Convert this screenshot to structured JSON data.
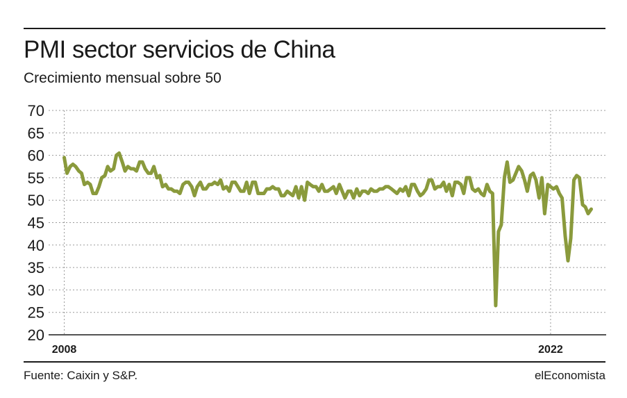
{
  "header": {
    "title": "PMI sector servicios de China",
    "subtitle": "Crecimiento mensual sobre 50"
  },
  "footer": {
    "source": "Fuente: Caixin y S&P.",
    "brand": "elEconomista"
  },
  "colors": {
    "line": "#8a9a3c",
    "grid": "#9a9a9a",
    "text": "#1a1a1a"
  },
  "chart_data": {
    "type": "line",
    "title": "PMI sector servicios de China",
    "subtitle": "Crecimiento mensual sobre 50",
    "xlabel": "",
    "ylabel": "",
    "ylim": [
      20,
      70
    ],
    "xlim": [
      2008,
      2023.25
    ],
    "yticks": [
      "70",
      "65",
      "60",
      "55",
      "50",
      "45",
      "40",
      "35",
      "30",
      "25",
      "20"
    ],
    "xticks": [
      {
        "label": "2008",
        "value": 2008
      },
      {
        "label": "2022",
        "value": 2022
      }
    ],
    "grid": "horizontal and vertical dotted",
    "legend": "none",
    "series": [
      {
        "values": [
          [
            2008.0,
            59.5
          ],
          [
            2008.08,
            56.0
          ],
          [
            2008.17,
            57.5
          ],
          [
            2008.25,
            58.0
          ],
          [
            2008.33,
            57.5
          ],
          [
            2008.42,
            56.5
          ],
          [
            2008.5,
            56.0
          ],
          [
            2008.58,
            53.5
          ],
          [
            2008.67,
            54.0
          ],
          [
            2008.75,
            53.5
          ],
          [
            2008.83,
            51.5
          ],
          [
            2008.92,
            51.5
          ],
          [
            2009.0,
            53.0
          ],
          [
            2009.08,
            55.0
          ],
          [
            2009.17,
            55.5
          ],
          [
            2009.25,
            57.5
          ],
          [
            2009.33,
            56.5
          ],
          [
            2009.42,
            57.0
          ],
          [
            2009.5,
            60.0
          ],
          [
            2009.58,
            60.5
          ],
          [
            2009.67,
            58.5
          ],
          [
            2009.75,
            56.5
          ],
          [
            2009.83,
            57.5
          ],
          [
            2009.92,
            57.0
          ],
          [
            2010.0,
            57.0
          ],
          [
            2010.08,
            56.5
          ],
          [
            2010.17,
            58.5
          ],
          [
            2010.25,
            58.5
          ],
          [
            2010.33,
            57.0
          ],
          [
            2010.42,
            56.0
          ],
          [
            2010.5,
            56.0
          ],
          [
            2010.58,
            57.5
          ],
          [
            2010.67,
            55.0
          ],
          [
            2010.75,
            55.5
          ],
          [
            2010.83,
            53.0
          ],
          [
            2010.92,
            53.5
          ],
          [
            2011.0,
            52.5
          ],
          [
            2011.08,
            52.5
          ],
          [
            2011.17,
            52.0
          ],
          [
            2011.25,
            52.0
          ],
          [
            2011.33,
            51.5
          ],
          [
            2011.42,
            53.5
          ],
          [
            2011.5,
            54.0
          ],
          [
            2011.58,
            54.0
          ],
          [
            2011.67,
            53.0
          ],
          [
            2011.75,
            51.0
          ],
          [
            2011.83,
            53.0
          ],
          [
            2011.92,
            54.0
          ],
          [
            2012.0,
            52.5
          ],
          [
            2012.08,
            52.5
          ],
          [
            2012.17,
            53.5
          ],
          [
            2012.25,
            53.5
          ],
          [
            2012.33,
            54.0
          ],
          [
            2012.42,
            53.5
          ],
          [
            2012.5,
            54.5
          ],
          [
            2012.58,
            52.5
          ],
          [
            2012.67,
            53.0
          ],
          [
            2012.75,
            52.0
          ],
          [
            2012.83,
            54.0
          ],
          [
            2012.92,
            54.0
          ],
          [
            2013.0,
            53.0
          ],
          [
            2013.08,
            52.0
          ],
          [
            2013.17,
            52.0
          ],
          [
            2013.25,
            54.0
          ],
          [
            2013.33,
            51.5
          ],
          [
            2013.42,
            54.0
          ],
          [
            2013.5,
            54.0
          ],
          [
            2013.58,
            51.5
          ],
          [
            2013.67,
            51.5
          ],
          [
            2013.75,
            51.5
          ],
          [
            2013.83,
            52.5
          ],
          [
            2013.92,
            52.5
          ],
          [
            2014.0,
            53.0
          ],
          [
            2014.08,
            52.5
          ],
          [
            2014.17,
            52.5
          ],
          [
            2014.25,
            51.0
          ],
          [
            2014.33,
            51.0
          ],
          [
            2014.42,
            52.0
          ],
          [
            2014.5,
            51.5
          ],
          [
            2014.58,
            51.0
          ],
          [
            2014.67,
            53.0
          ],
          [
            2014.75,
            50.5
          ],
          [
            2014.83,
            53.0
          ],
          [
            2014.92,
            50.0
          ],
          [
            2015.0,
            54.0
          ],
          [
            2015.08,
            53.5
          ],
          [
            2015.17,
            53.0
          ],
          [
            2015.25,
            53.0
          ],
          [
            2015.33,
            52.0
          ],
          [
            2015.42,
            53.5
          ],
          [
            2015.5,
            52.0
          ],
          [
            2015.58,
            52.0
          ],
          [
            2015.67,
            52.5
          ],
          [
            2015.75,
            53.0
          ],
          [
            2015.83,
            51.5
          ],
          [
            2015.92,
            53.5
          ],
          [
            2016.0,
            52.0
          ],
          [
            2016.08,
            50.5
          ],
          [
            2016.17,
            52.0
          ],
          [
            2016.25,
            52.0
          ],
          [
            2016.33,
            50.5
          ],
          [
            2016.42,
            52.5
          ],
          [
            2016.5,
            51.0
          ],
          [
            2016.58,
            52.0
          ],
          [
            2016.67,
            52.0
          ],
          [
            2016.75,
            51.5
          ],
          [
            2016.83,
            52.5
          ],
          [
            2016.92,
            52.0
          ],
          [
            2017.0,
            52.0
          ],
          [
            2017.08,
            52.5
          ],
          [
            2017.17,
            52.5
          ],
          [
            2017.25,
            53.0
          ],
          [
            2017.33,
            53.0
          ],
          [
            2017.42,
            52.5
          ],
          [
            2017.5,
            52.0
          ],
          [
            2017.58,
            51.5
          ],
          [
            2017.67,
            52.5
          ],
          [
            2017.75,
            52.0
          ],
          [
            2017.83,
            53.0
          ],
          [
            2017.92,
            51.0
          ],
          [
            2018.0,
            53.5
          ],
          [
            2018.08,
            53.5
          ],
          [
            2018.17,
            52.0
          ],
          [
            2018.25,
            51.0
          ],
          [
            2018.33,
            51.5
          ],
          [
            2018.42,
            52.5
          ],
          [
            2018.5,
            54.5
          ],
          [
            2018.58,
            54.5
          ],
          [
            2018.67,
            52.5
          ],
          [
            2018.75,
            53.0
          ],
          [
            2018.83,
            53.0
          ],
          [
            2018.92,
            54.0
          ],
          [
            2019.0,
            52.0
          ],
          [
            2019.08,
            53.5
          ],
          [
            2019.17,
            51.0
          ],
          [
            2019.25,
            54.0
          ],
          [
            2019.33,
            54.0
          ],
          [
            2019.42,
            53.5
          ],
          [
            2019.5,
            51.5
          ],
          [
            2019.58,
            55.0
          ],
          [
            2019.67,
            55.0
          ],
          [
            2019.75,
            52.5
          ],
          [
            2019.83,
            52.0
          ],
          [
            2019.92,
            52.5
          ],
          [
            2020.0,
            51.5
          ],
          [
            2020.08,
            51.0
          ],
          [
            2020.17,
            53.5
          ],
          [
            2020.25,
            52.0
          ],
          [
            2020.33,
            51.5
          ],
          [
            2020.42,
            26.5
          ],
          [
            2020.5,
            43.0
          ],
          [
            2020.58,
            44.5
          ],
          [
            2020.67,
            55.0
          ],
          [
            2020.75,
            58.5
          ],
          [
            2020.83,
            54.0
          ],
          [
            2020.92,
            54.5
          ],
          [
            2021.0,
            56.0
          ],
          [
            2021.08,
            57.5
          ],
          [
            2021.17,
            56.5
          ],
          [
            2021.25,
            54.5
          ],
          [
            2021.33,
            52.0
          ],
          [
            2021.42,
            55.5
          ],
          [
            2021.5,
            56.0
          ],
          [
            2021.58,
            54.5
          ],
          [
            2021.67,
            50.5
          ],
          [
            2021.75,
            55.0
          ],
          [
            2021.83,
            47.0
          ],
          [
            2021.92,
            53.5
          ],
          [
            2022.0,
            53.0
          ],
          [
            2022.08,
            52.5
          ],
          [
            2022.17,
            53.0
          ],
          [
            2022.25,
            51.5
          ],
          [
            2022.33,
            50.5
          ],
          [
            2022.42,
            42.0
          ],
          [
            2022.5,
            36.5
          ],
          [
            2022.58,
            41.5
          ],
          [
            2022.67,
            54.5
          ],
          [
            2022.75,
            55.5
          ],
          [
            2022.83,
            55.0
          ],
          [
            2022.92,
            49.0
          ],
          [
            2023.0,
            48.5
          ],
          [
            2023.08,
            47.0
          ],
          [
            2023.17,
            48.0
          ]
        ]
      }
    ]
  }
}
